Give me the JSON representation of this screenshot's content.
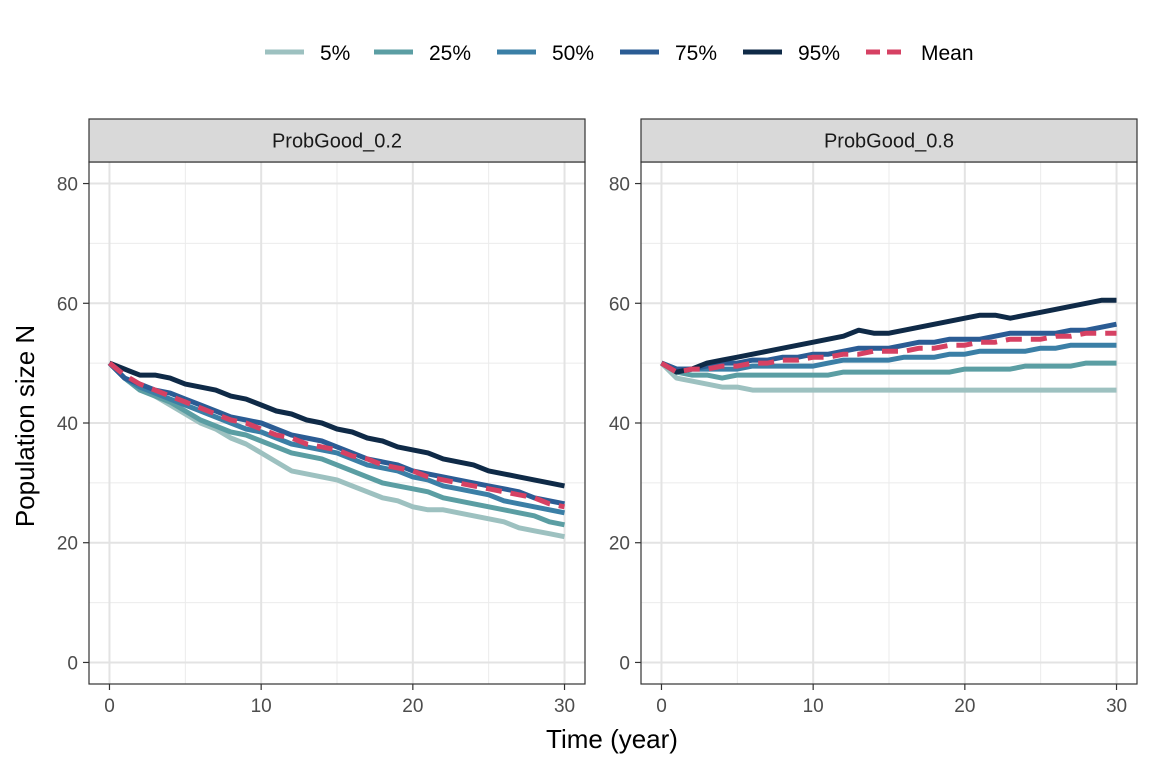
{
  "chart_data": {
    "type": "line",
    "xlabel": "Time (year)",
    "ylabel": "Population size N",
    "xlim": [
      0,
      30
    ],
    "ylim": [
      0,
      80
    ],
    "xticks": [
      0,
      10,
      20,
      30
    ],
    "yticks": [
      0,
      20,
      40,
      60,
      80
    ],
    "grid": true,
    "legend_position": "top",
    "legend": [
      {
        "key": "p05",
        "label": "5%",
        "color": "#9dc1c0",
        "dashed": false
      },
      {
        "key": "p25",
        "label": "25%",
        "color": "#5b9ea3",
        "dashed": false
      },
      {
        "key": "p50",
        "label": "50%",
        "color": "#3b7fa6",
        "dashed": false
      },
      {
        "key": "p75",
        "label": "75%",
        "color": "#2b5c94",
        "dashed": false
      },
      {
        "key": "p95",
        "label": "95%",
        "color": "#0f2a47",
        "dashed": false
      },
      {
        "key": "mean",
        "label": "Mean",
        "color": "#d64163",
        "dashed": true
      }
    ],
    "panels": [
      {
        "title": "ProbGood_0.2",
        "x": [
          0,
          1,
          2,
          3,
          4,
          5,
          6,
          7,
          8,
          9,
          10,
          11,
          12,
          13,
          14,
          15,
          16,
          17,
          18,
          19,
          20,
          21,
          22,
          23,
          24,
          25,
          26,
          27,
          28,
          29,
          30
        ],
        "series": [
          {
            "name": "5%",
            "key": "p05",
            "values": [
              50,
              47.5,
              46,
              44.5,
              43,
              41.5,
              40,
              39,
              37.5,
              36.5,
              35,
              33.5,
              32,
              31.5,
              31,
              30.5,
              29.5,
              28.5,
              27.5,
              27,
              26,
              25.5,
              25.5,
              25,
              24.5,
              24,
              23.5,
              22.5,
              22,
              21.5,
              21
            ]
          },
          {
            "name": "25%",
            "key": "p25",
            "values": [
              50,
              47.5,
              45.5,
              44.5,
              43.5,
              42,
              40.5,
              39.5,
              38.5,
              38,
              37,
              36,
              35,
              34.5,
              34,
              33,
              32,
              31,
              30,
              29.5,
              29,
              28.5,
              27.5,
              27,
              26.5,
              26,
              25.5,
              25,
              24.5,
              23.5,
              23
            ]
          },
          {
            "name": "50%",
            "key": "p50",
            "values": [
              50,
              47.5,
              46,
              45,
              44,
              43,
              42,
              41,
              40,
              39,
              38.5,
              37.5,
              36.5,
              36,
              35.5,
              35,
              34,
              33,
              32.5,
              32,
              31,
              30.5,
              29.5,
              29,
              28.5,
              28,
              27,
              26.5,
              26,
              25.5,
              25
            ]
          },
          {
            "name": "75%",
            "key": "p75",
            "values": [
              50,
              47.5,
              46.5,
              45.5,
              45,
              44,
              43,
              42,
              41,
              40.5,
              40,
              39,
              38,
              37.5,
              37,
              36,
              35,
              34,
              33.5,
              33,
              32,
              31.5,
              31,
              30.5,
              30,
              29.5,
              29,
              28.5,
              27.5,
              27,
              26.5
            ]
          },
          {
            "name": "95%",
            "key": "p95",
            "values": [
              50,
              49,
              48,
              48,
              47.5,
              46.5,
              46,
              45.5,
              44.5,
              44,
              43,
              42,
              41.5,
              40.5,
              40,
              39,
              38.5,
              37.5,
              37,
              36,
              35.5,
              35,
              34,
              33.5,
              33,
              32,
              31.5,
              31,
              30.5,
              30,
              29.5
            ]
          },
          {
            "name": "Mean",
            "key": "mean",
            "values": [
              50,
              48,
              46.5,
              45.5,
              44.5,
              43.5,
              42.5,
              41.5,
              40.5,
              40,
              39,
              38,
              37.5,
              36.5,
              36,
              35.5,
              34.5,
              34,
              33,
              32.5,
              32,
              31,
              30.5,
              30,
              29.5,
              29,
              28.5,
              28,
              27.5,
              26.5,
              26
            ]
          }
        ]
      },
      {
        "title": "ProbGood_0.8",
        "x": [
          0,
          1,
          2,
          3,
          4,
          5,
          6,
          7,
          8,
          9,
          10,
          11,
          12,
          13,
          14,
          15,
          16,
          17,
          18,
          19,
          20,
          21,
          22,
          23,
          24,
          25,
          26,
          27,
          28,
          29,
          30
        ],
        "series": [
          {
            "name": "5%",
            "key": "p05",
            "values": [
              50,
              47.5,
              47,
              46.5,
              46,
              46,
              45.5,
              45.5,
              45.5,
              45.5,
              45.5,
              45.5,
              45.5,
              45.5,
              45.5,
              45.5,
              45.5,
              45.5,
              45.5,
              45.5,
              45.5,
              45.5,
              45.5,
              45.5,
              45.5,
              45.5,
              45.5,
              45.5,
              45.5,
              45.5,
              45.5
            ]
          },
          {
            "name": "25%",
            "key": "p25",
            "values": [
              50,
              48.5,
              48,
              48,
              47.5,
              48,
              48,
              48,
              48,
              48,
              48,
              48,
              48.5,
              48.5,
              48.5,
              48.5,
              48.5,
              48.5,
              48.5,
              48.5,
              49,
              49,
              49,
              49,
              49.5,
              49.5,
              49.5,
              49.5,
              50,
              50,
              50
            ]
          },
          {
            "name": "50%",
            "key": "p50",
            "values": [
              50,
              49,
              49,
              49,
              49,
              49,
              49.5,
              49.5,
              49.5,
              49.5,
              49.5,
              50,
              50.5,
              50.5,
              50.5,
              50.5,
              51,
              51,
              51,
              51.5,
              51.5,
              52,
              52,
              52,
              52,
              52.5,
              52.5,
              53,
              53,
              53,
              53
            ]
          },
          {
            "name": "75%",
            "key": "p75",
            "values": [
              50,
              49,
              49,
              49.5,
              50,
              50,
              50.5,
              50.5,
              51,
              51,
              51.5,
              51.5,
              52,
              52.5,
              52.5,
              52.5,
              53,
              53.5,
              53.5,
              54,
              54,
              54,
              54.5,
              55,
              55,
              55,
              55,
              55.5,
              55.5,
              56,
              56.5
            ]
          },
          {
            "name": "95%",
            "key": "p95",
            "values": [
              50,
              48.5,
              49,
              50,
              50.5,
              51,
              51.5,
              52,
              52.5,
              53,
              53.5,
              54,
              54.5,
              55.5,
              55,
              55,
              55.5,
              56,
              56.5,
              57,
              57.5,
              58,
              58,
              57.5,
              58,
              58.5,
              59,
              59.5,
              60,
              60.5,
              60.5
            ]
          },
          {
            "name": "Mean",
            "key": "mean",
            "values": [
              50,
              48.5,
              49,
              49,
              49.5,
              49.5,
              50,
              50,
              50.5,
              50.5,
              51,
              51,
              51.5,
              51.5,
              52,
              52,
              52,
              52.5,
              52.5,
              53,
              53,
              53.5,
              53.5,
              54,
              54,
              54,
              54.5,
              54.5,
              55,
              55,
              55
            ]
          }
        ]
      }
    ]
  }
}
